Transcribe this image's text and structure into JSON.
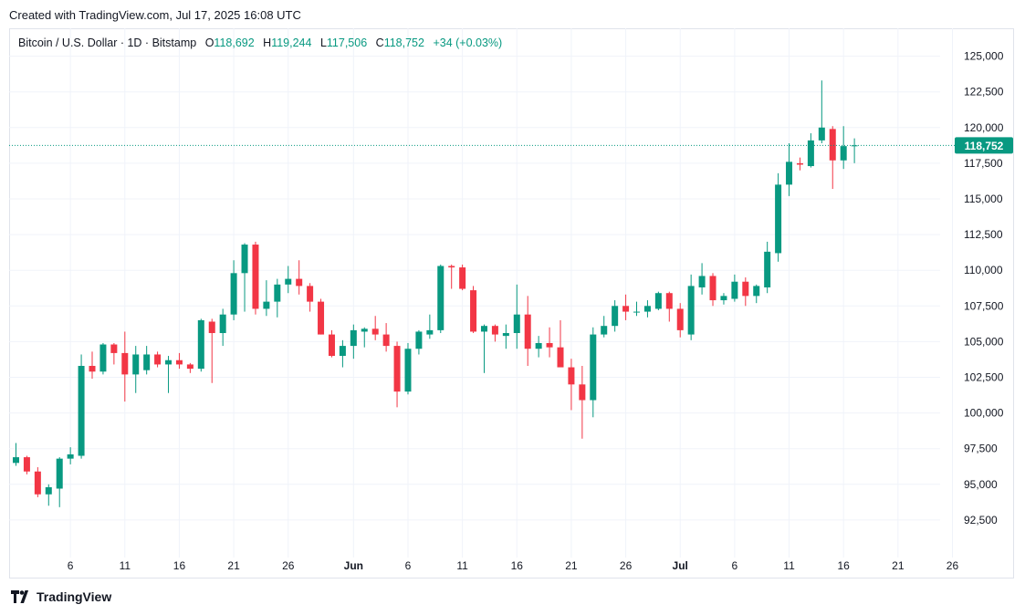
{
  "header": {
    "created": "Created with TradingView.com, Jul 17, 2025 16:08 UTC"
  },
  "legend": {
    "symbol": "Bitcoin / U.S. Dollar · 1D · Bitstamp",
    "o_label": "O",
    "o_value": "118,692",
    "h_label": "H",
    "h_value": "119,244",
    "l_label": "L",
    "l_value": "117,506",
    "c_label": "C",
    "c_value": "118,752",
    "change": "+34 (+0.03%)"
  },
  "brand": {
    "name": "TradingView",
    "icon": "tradingview-logo-icon"
  },
  "colors": {
    "up": "#089981",
    "down": "#f23645",
    "grid": "#f0f3fa",
    "text": "#131722"
  },
  "chart_data": {
    "type": "candlestick",
    "title": "Bitcoin / U.S. Dollar · 1D · Bitstamp",
    "ylim": [
      90000,
      127500
    ],
    "y_ticks": [
      92500,
      95000,
      97500,
      100000,
      102500,
      105000,
      107500,
      110000,
      112500,
      115000,
      117500,
      120000,
      122500,
      125000
    ],
    "y_tick_labels": [
      "92,500",
      "95,000",
      "97,500",
      "100,000",
      "102,500",
      "105,000",
      "107,500",
      "110,000",
      "112,500",
      "115,000",
      "117,500",
      "120,000",
      "122,500",
      "125,000"
    ],
    "x_ticks": [
      {
        "index": 5,
        "label": "6"
      },
      {
        "index": 10,
        "label": "11"
      },
      {
        "index": 15,
        "label": "16"
      },
      {
        "index": 20,
        "label": "21"
      },
      {
        "index": 25,
        "label": "26"
      },
      {
        "index": 31,
        "label": "Jun"
      },
      {
        "index": 36,
        "label": "6"
      },
      {
        "index": 41,
        "label": "11"
      },
      {
        "index": 46,
        "label": "16"
      },
      {
        "index": 51,
        "label": "21"
      },
      {
        "index": 56,
        "label": "26"
      },
      {
        "index": 61,
        "label": "Jul"
      },
      {
        "index": 66,
        "label": "6"
      },
      {
        "index": 71,
        "label": "11"
      },
      {
        "index": 76,
        "label": "16"
      },
      {
        "index": 81,
        "label": "21"
      },
      {
        "index": 86,
        "label": "26"
      }
    ],
    "last_price": 118752,
    "last_price_label": "118,752",
    "candles": [
      {
        "o": 96500,
        "h": 97900,
        "l": 96300,
        "c": 96900
      },
      {
        "o": 96900,
        "h": 97000,
        "l": 95700,
        "c": 95900
      },
      {
        "o": 95900,
        "h": 96200,
        "l": 94100,
        "c": 94300
      },
      {
        "o": 94300,
        "h": 95000,
        "l": 93500,
        "c": 94800
      },
      {
        "o": 94700,
        "h": 96900,
        "l": 93400,
        "c": 96800
      },
      {
        "o": 96800,
        "h": 97600,
        "l": 96400,
        "c": 97100
      },
      {
        "o": 97000,
        "h": 104100,
        "l": 96800,
        "c": 103300
      },
      {
        "o": 103300,
        "h": 104300,
        "l": 102400,
        "c": 102900
      },
      {
        "o": 102900,
        "h": 104900,
        "l": 102700,
        "c": 104800
      },
      {
        "o": 104800,
        "h": 104900,
        "l": 103400,
        "c": 104200
      },
      {
        "o": 104200,
        "h": 105700,
        "l": 100800,
        "c": 102700
      },
      {
        "o": 102700,
        "h": 104700,
        "l": 101400,
        "c": 104100
      },
      {
        "o": 103000,
        "h": 104700,
        "l": 102700,
        "c": 104100
      },
      {
        "o": 104100,
        "h": 104300,
        "l": 103200,
        "c": 103400
      },
      {
        "o": 103400,
        "h": 104000,
        "l": 101400,
        "c": 103700
      },
      {
        "o": 103700,
        "h": 104200,
        "l": 103100,
        "c": 103400
      },
      {
        "o": 103400,
        "h": 103500,
        "l": 102800,
        "c": 103100
      },
      {
        "o": 103100,
        "h": 106600,
        "l": 102900,
        "c": 106500
      },
      {
        "o": 106400,
        "h": 106600,
        "l": 102100,
        "c": 105600
      },
      {
        "o": 105600,
        "h": 107300,
        "l": 104700,
        "c": 106900
      },
      {
        "o": 106900,
        "h": 110700,
        "l": 106500,
        "c": 109800
      },
      {
        "o": 109800,
        "h": 111900,
        "l": 107100,
        "c": 111800
      },
      {
        "o": 111800,
        "h": 112000,
        "l": 106900,
        "c": 107300
      },
      {
        "o": 107300,
        "h": 109300,
        "l": 106800,
        "c": 107800
      },
      {
        "o": 107800,
        "h": 109400,
        "l": 106700,
        "c": 109000
      },
      {
        "o": 109000,
        "h": 110300,
        "l": 108400,
        "c": 109400
      },
      {
        "o": 109400,
        "h": 110700,
        "l": 108300,
        "c": 108900
      },
      {
        "o": 108900,
        "h": 109100,
        "l": 107100,
        "c": 107800
      },
      {
        "o": 107800,
        "h": 108000,
        "l": 105500,
        "c": 105500
      },
      {
        "o": 105500,
        "h": 105800,
        "l": 103900,
        "c": 104000
      },
      {
        "o": 104000,
        "h": 105100,
        "l": 103200,
        "c": 104700
      },
      {
        "o": 104700,
        "h": 106200,
        "l": 103800,
        "c": 105800
      },
      {
        "o": 105700,
        "h": 106000,
        "l": 104600,
        "c": 105900
      },
      {
        "o": 105900,
        "h": 106800,
        "l": 105100,
        "c": 105500
      },
      {
        "o": 105500,
        "h": 106300,
        "l": 104300,
        "c": 104700
      },
      {
        "o": 104700,
        "h": 105000,
        "l": 100400,
        "c": 101500
      },
      {
        "o": 101500,
        "h": 104900,
        "l": 101300,
        "c": 104500
      },
      {
        "o": 104500,
        "h": 105800,
        "l": 104100,
        "c": 105700
      },
      {
        "o": 105500,
        "h": 106900,
        "l": 105200,
        "c": 105800
      },
      {
        "o": 105800,
        "h": 110400,
        "l": 105600,
        "c": 110300
      },
      {
        "o": 110300,
        "h": 110400,
        "l": 108700,
        "c": 110200
      },
      {
        "o": 110200,
        "h": 110400,
        "l": 108600,
        "c": 108700
      },
      {
        "o": 108600,
        "h": 108900,
        "l": 105600,
        "c": 105700
      },
      {
        "o": 105700,
        "h": 106200,
        "l": 102800,
        "c": 106100
      },
      {
        "o": 106100,
        "h": 106200,
        "l": 105000,
        "c": 105500
      },
      {
        "o": 105400,
        "h": 106200,
        "l": 104500,
        "c": 105600
      },
      {
        "o": 105600,
        "h": 109000,
        "l": 104500,
        "c": 106900
      },
      {
        "o": 106900,
        "h": 108200,
        "l": 103300,
        "c": 104500
      },
      {
        "o": 104500,
        "h": 105400,
        "l": 103900,
        "c": 104900
      },
      {
        "o": 104900,
        "h": 106000,
        "l": 103900,
        "c": 104600
      },
      {
        "o": 104600,
        "h": 106500,
        "l": 103200,
        "c": 103200
      },
      {
        "o": 103200,
        "h": 103800,
        "l": 100200,
        "c": 102000
      },
      {
        "o": 102000,
        "h": 103300,
        "l": 98200,
        "c": 100900
      },
      {
        "o": 100900,
        "h": 106000,
        "l": 99700,
        "c": 105500
      },
      {
        "o": 105500,
        "h": 106800,
        "l": 105300,
        "c": 106100
      },
      {
        "o": 106100,
        "h": 107900,
        "l": 105700,
        "c": 107500
      },
      {
        "o": 107500,
        "h": 108300,
        "l": 106500,
        "c": 107100
      },
      {
        "o": 107100,
        "h": 107800,
        "l": 106800,
        "c": 107100
      },
      {
        "o": 107100,
        "h": 107900,
        "l": 106700,
        "c": 107500
      },
      {
        "o": 107300,
        "h": 108500,
        "l": 107200,
        "c": 108400
      },
      {
        "o": 108400,
        "h": 108500,
        "l": 106400,
        "c": 107300
      },
      {
        "o": 107300,
        "h": 107700,
        "l": 105300,
        "c": 105800
      },
      {
        "o": 105500,
        "h": 109700,
        "l": 105100,
        "c": 108900
      },
      {
        "o": 108800,
        "h": 110500,
        "l": 108300,
        "c": 109600
      },
      {
        "o": 109600,
        "h": 109800,
        "l": 107500,
        "c": 107900
      },
      {
        "o": 107900,
        "h": 108400,
        "l": 107600,
        "c": 108200
      },
      {
        "o": 108000,
        "h": 109700,
        "l": 107800,
        "c": 109200
      },
      {
        "o": 109200,
        "h": 109500,
        "l": 107500,
        "c": 108200
      },
      {
        "o": 108200,
        "h": 109000,
        "l": 107700,
        "c": 108900
      },
      {
        "o": 108800,
        "h": 112000,
        "l": 108400,
        "c": 111300
      },
      {
        "o": 111200,
        "h": 116800,
        "l": 110600,
        "c": 116000
      },
      {
        "o": 116000,
        "h": 118900,
        "l": 115200,
        "c": 117600
      },
      {
        "o": 117500,
        "h": 117900,
        "l": 117000,
        "c": 117400
      },
      {
        "o": 117300,
        "h": 119600,
        "l": 117200,
        "c": 119100
      },
      {
        "o": 119100,
        "h": 123300,
        "l": 118900,
        "c": 120000
      },
      {
        "o": 119900,
        "h": 120100,
        "l": 115700,
        "c": 117700
      },
      {
        "o": 117700,
        "h": 120100,
        "l": 117100,
        "c": 118700
      },
      {
        "o": 118692,
        "h": 119244,
        "l": 117506,
        "c": 118752
      }
    ]
  }
}
